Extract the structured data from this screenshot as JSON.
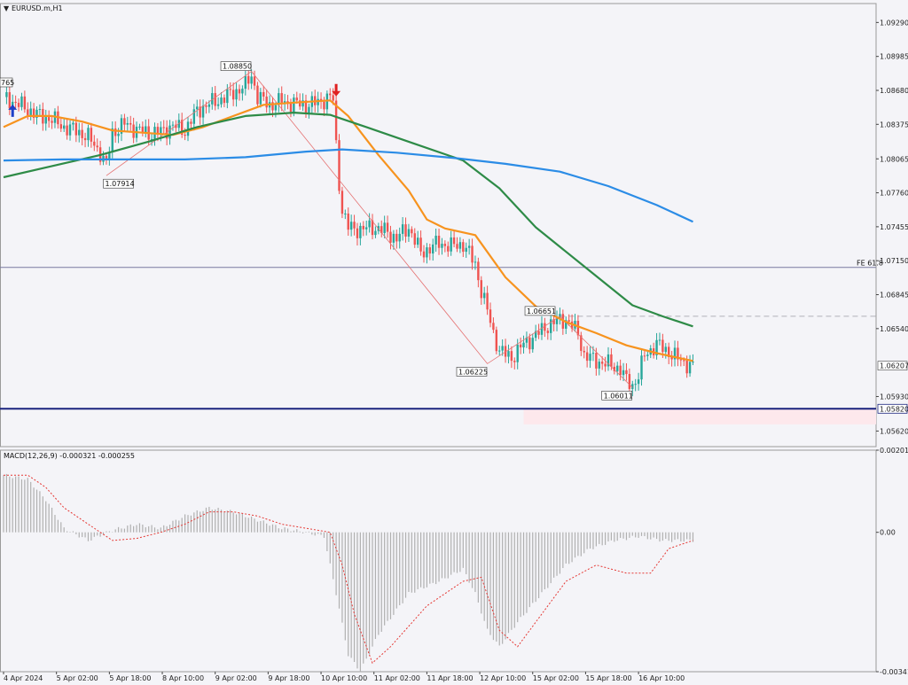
{
  "window": {
    "symbol_label": "EURUSD.m,H1",
    "menu_icon": "triangle-down-icon"
  },
  "colors": {
    "background": "#f4f4f8",
    "bull": "#26a69a",
    "bear": "#ef5350",
    "ema_fast": "#f7931e",
    "ema_mid": "#2e8b47",
    "ema_slow": "#2b8ce6",
    "support": "#1a237e",
    "fibo": "#7a7aa0",
    "zigzag": "#e57373",
    "macd_hist": "#b0b0b0",
    "macd_signal": "#e53935",
    "current_price_box": "#ffffff"
  },
  "chart_data": [
    {
      "type": "candlestick",
      "title": "EURUSD.m,H1",
      "ylim": [
        1.0548,
        1.0946
      ],
      "y_ticks": [
        "1.09290",
        "1.08985",
        "1.08680",
        "1.08375",
        "1.08065",
        "1.07760",
        "1.07455",
        "1.07150",
        "1.06845",
        "1.06540",
        "1.06207",
        "1.05930",
        "1.05820",
        "1.05620"
      ],
      "x_ticks": [
        "4 Apr 2024",
        "5 Apr 02:00",
        "5 Apr 18:00",
        "8 Apr 10:00",
        "9 Apr 02:00",
        "9 Apr 18:00",
        "10 Apr 10:00",
        "11 Apr 02:00",
        "11 Apr 18:00",
        "12 Apr 10:00",
        "15 Apr 02:00",
        "15 Apr 18:00",
        "16 Apr 10:00"
      ],
      "current_price": "1.06207",
      "price_path": [
        [
          0,
          1.0862
        ],
        [
          6,
          1.0854
        ],
        [
          12,
          1.0845
        ],
        [
          16,
          1.0842
        ],
        [
          20,
          1.0835
        ],
        [
          24,
          1.0832
        ],
        [
          28,
          1.0826
        ],
        [
          32,
          1.0812
        ],
        [
          34,
          1.08
        ],
        [
          36,
          1.083
        ],
        [
          40,
          1.0838
        ],
        [
          44,
          1.0833
        ],
        [
          48,
          1.0829
        ],
        [
          52,
          1.0831
        ],
        [
          56,
          1.0836
        ],
        [
          60,
          1.0832
        ],
        [
          64,
          1.085
        ],
        [
          68,
          1.0856
        ],
        [
          72,
          1.086
        ],
        [
          76,
          1.0866
        ],
        [
          80,
          1.0872
        ],
        [
          82,
          1.0882
        ],
        [
          84,
          1.0862
        ],
        [
          88,
          1.0855
        ],
        [
          92,
          1.0858
        ],
        [
          96,
          1.0856
        ],
        [
          100,
          1.0855
        ],
        [
          104,
          1.0857
        ],
        [
          108,
          1.0862
        ],
        [
          109,
          1.0859
        ],
        [
          110,
          1.0818
        ],
        [
          111,
          1.0785
        ],
        [
          112,
          1.076
        ],
        [
          114,
          1.0745
        ],
        [
          118,
          1.0743
        ],
        [
          122,
          1.0745
        ],
        [
          126,
          1.0742
        ],
        [
          130,
          1.0735
        ],
        [
          134,
          1.0745
        ],
        [
          138,
          1.0722
        ],
        [
          140,
          1.0725
        ],
        [
          144,
          1.0731
        ],
        [
          148,
          1.0728
        ],
        [
          152,
          1.073
        ],
        [
          156,
          1.0712
        ],
        [
          158,
          1.0688
        ],
        [
          160,
          1.067
        ],
        [
          162,
          1.065
        ],
        [
          164,
          1.0634
        ],
        [
          168,
          1.0628
        ],
        [
          172,
          1.064
        ],
        [
          176,
          1.0648
        ],
        [
          180,
          1.0657
        ],
        [
          184,
          1.0662
        ],
        [
          186,
          1.0662
        ],
        [
          190,
          1.065
        ],
        [
          192,
          1.063
        ],
        [
          196,
          1.0625
        ],
        [
          200,
          1.0622
        ],
        [
          204,
          1.0618
        ],
        [
          206,
          1.0607
        ],
        [
          208,
          1.0603
        ],
        [
          210,
          1.0612
        ],
        [
          212,
          1.063
        ],
        [
          216,
          1.064
        ],
        [
          220,
          1.0633
        ],
        [
          224,
          1.0625
        ],
        [
          228,
          1.062
        ]
      ],
      "series": [
        {
          "name": "",
          "role": "ema_fast",
          "points": [
            [
              0,
              1.0835
            ],
            [
              8,
              1.0845
            ],
            [
              16,
              1.0845
            ],
            [
              26,
              1.084
            ],
            [
              36,
              1.0832
            ],
            [
              46,
              1.083
            ],
            [
              56,
              1.0828
            ],
            [
              66,
              1.0835
            ],
            [
              76,
              1.0845
            ],
            [
              86,
              1.0855
            ],
            [
              96,
              1.0857
            ],
            [
              108,
              1.0859
            ],
            [
              114,
              1.0845
            ],
            [
              124,
              1.081
            ],
            [
              134,
              1.0778
            ],
            [
              140,
              1.0752
            ],
            [
              146,
              1.0744
            ],
            [
              156,
              1.0738
            ],
            [
              166,
              1.07
            ],
            [
              176,
              1.0674
            ],
            [
              186,
              1.066
            ],
            [
              196,
              1.065
            ],
            [
              206,
              1.0639
            ],
            [
              216,
              1.0632
            ],
            [
              228,
              1.0625
            ]
          ]
        },
        {
          "name": "",
          "role": "ema_mid",
          "points": [
            [
              0,
              1.079
            ],
            [
              16,
              1.08
            ],
            [
              32,
              1.081
            ],
            [
              48,
              1.0822
            ],
            [
              64,
              1.0835
            ],
            [
              80,
              1.0845
            ],
            [
              96,
              1.0848
            ],
            [
              108,
              1.0846
            ],
            [
              120,
              1.0835
            ],
            [
              136,
              1.082
            ],
            [
              152,
              1.0805
            ],
            [
              164,
              1.078
            ],
            [
              176,
              1.0745
            ],
            [
              192,
              1.071
            ],
            [
              208,
              1.0675
            ],
            [
              218,
              1.0665
            ],
            [
              228,
              1.0656
            ]
          ]
        },
        {
          "name": "",
          "role": "ema_slow",
          "points": [
            [
              0,
              1.0805
            ],
            [
              20,
              1.0806
            ],
            [
              40,
              1.0806
            ],
            [
              60,
              1.0806
            ],
            [
              80,
              1.0808
            ],
            [
              100,
              1.0813
            ],
            [
              112,
              1.0815
            ],
            [
              130,
              1.0812
            ],
            [
              150,
              1.0807
            ],
            [
              166,
              1.0802
            ],
            [
              184,
              1.0795
            ],
            [
              200,
              1.0782
            ],
            [
              216,
              1.0765
            ],
            [
              228,
              1.075
            ]
          ]
        }
      ],
      "zigzag": [
        [
          34,
          1.07914
        ],
        [
          82,
          1.0885
        ],
        [
          160,
          1.06225
        ],
        [
          184,
          1.06651
        ],
        [
          208,
          1.06011
        ]
      ],
      "swing_labels": [
        "1.07914",
        "1.08850",
        "1.06225",
        "1.06651",
        "1.06011"
      ],
      "partial_label": "765",
      "horizontal_levels": [
        {
          "name": "FE 61.8",
          "price": 1.0709
        },
        {
          "name": "support",
          "price": 1.0582
        },
        {
          "name": "dashed-resistance",
          "price": 1.06651
        }
      ],
      "zone": {
        "price_from": 1.0582,
        "price_to": 1.0568,
        "from_bar": 172,
        "to_bar": 270
      },
      "arrows": [
        {
          "bar": 3,
          "direction": "up"
        },
        {
          "bar": 110,
          "direction": "down"
        }
      ]
    },
    {
      "type": "bar",
      "title": "MACD(12,26,9) -0.000321 -0.000255",
      "ylim": [
        -0.003413,
        0.002011
      ],
      "y_ticks": [
        "0.002011",
        "0.00",
        "-0.003413"
      ],
      "histogram_path": [
        [
          0,
          0.0014
        ],
        [
          8,
          0.0013
        ],
        [
          14,
          0.0008
        ],
        [
          20,
          0.0001
        ],
        [
          28,
          -0.0002
        ],
        [
          36,
          5e-05
        ],
        [
          44,
          0.0002
        ],
        [
          52,
          0.0001
        ],
        [
          60,
          0.0004
        ],
        [
          68,
          0.0006
        ],
        [
          76,
          0.0005
        ],
        [
          84,
          0.0003
        ],
        [
          92,
          0.0001
        ],
        [
          100,
          0.0
        ],
        [
          106,
          -0.0001
        ],
        [
          110,
          -0.0015
        ],
        [
          114,
          -0.003
        ],
        [
          118,
          -0.0034
        ],
        [
          124,
          -0.0025
        ],
        [
          134,
          -0.0015
        ],
        [
          144,
          -0.0012
        ],
        [
          152,
          -0.0009
        ],
        [
          156,
          -0.0015
        ],
        [
          160,
          -0.0024
        ],
        [
          164,
          -0.0028
        ],
        [
          170,
          -0.0022
        ],
        [
          178,
          -0.0015
        ],
        [
          186,
          -0.0008
        ],
        [
          194,
          -0.0004
        ],
        [
          202,
          -0.0002
        ],
        [
          210,
          -0.0001
        ],
        [
          218,
          -0.0002
        ],
        [
          228,
          -0.0002
        ]
      ],
      "signal_path": [
        [
          0,
          0.0014
        ],
        [
          8,
          0.0014
        ],
        [
          14,
          0.0011
        ],
        [
          20,
          0.0006
        ],
        [
          28,
          0.0002
        ],
        [
          36,
          -0.0002
        ],
        [
          44,
          -0.00015
        ],
        [
          52,
          0.0
        ],
        [
          60,
          0.0002
        ],
        [
          68,
          0.0005
        ],
        [
          76,
          0.0005
        ],
        [
          84,
          0.0004
        ],
        [
          92,
          0.0002
        ],
        [
          100,
          0.0001
        ],
        [
          108,
          0.0
        ],
        [
          112,
          -0.0008
        ],
        [
          116,
          -0.002
        ],
        [
          122,
          -0.0032
        ],
        [
          128,
          -0.0028
        ],
        [
          140,
          -0.0018
        ],
        [
          152,
          -0.0012
        ],
        [
          158,
          -0.0011
        ],
        [
          164,
          -0.0024
        ],
        [
          170,
          -0.0028
        ],
        [
          178,
          -0.002
        ],
        [
          186,
          -0.0012
        ],
        [
          196,
          -0.0008
        ],
        [
          206,
          -0.001
        ],
        [
          214,
          -0.001
        ],
        [
          220,
          -0.0004
        ],
        [
          228,
          -0.0002
        ]
      ]
    }
  ]
}
